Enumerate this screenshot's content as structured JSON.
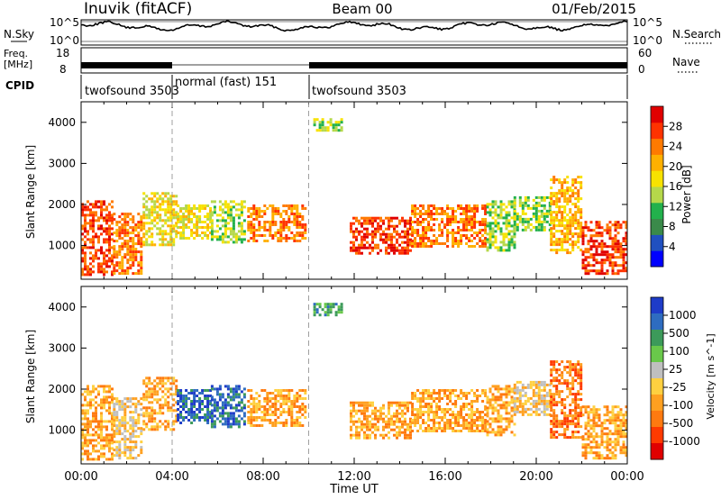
{
  "header": {
    "station": "Inuvik (fitACF)",
    "beam": "Beam 00",
    "date": "01/Feb/2015"
  },
  "side_labels": {
    "nsky": "N.Sky",
    "freq": "Freq.",
    "freq_unit": "[MHz]",
    "cpid": "CPID",
    "nsearch": "N.Search",
    "nave": "Nave"
  },
  "noise_axis": {
    "top": "10^5",
    "bottom": "10^0"
  },
  "freq_axis": {
    "top": "18",
    "bottom": "8"
  },
  "nave_axis": {
    "top": "60",
    "bottom": "0"
  },
  "cpid_segments": [
    {
      "label": "twofsound 3503",
      "start_h": 0,
      "end_h": 4
    },
    {
      "label": "normal (fast) 151",
      "start_h": 4,
      "end_h": 10
    },
    {
      "label": "twofsound 3503",
      "start_h": 10,
      "end_h": 24
    }
  ],
  "time_axis": {
    "xlabel": "Time UT",
    "ticks": [
      "00:00",
      "04:00",
      "08:00",
      "12:00",
      "16:00",
      "20:00",
      "00:00"
    ]
  },
  "colors": {
    "power": [
      "#0000ff",
      "#2050c0",
      "#3a8a4a",
      "#22b14c",
      "#b5d84a",
      "#f7e200",
      "#ffb000",
      "#ff7a00",
      "#ff3300",
      "#e00000"
    ],
    "velocity": [
      "#1e3cc8",
      "#2e6cc0",
      "#3c9a5a",
      "#69c84a",
      "#bfbfbf",
      "#ffd040",
      "#ffa020",
      "#ff7a10",
      "#ff3a00",
      "#e00000"
    ]
  },
  "chart_data": [
    {
      "type": "heatmap",
      "panel": "power",
      "ylabel": "Slant Range [km]",
      "xlabel": "",
      "ylim": [
        180,
        4500
      ],
      "xlim_hours": [
        0,
        24
      ],
      "yticks": [
        "1000",
        "2000",
        "3000",
        "4000"
      ],
      "colorbar": {
        "label": "Power [dB]",
        "ticks": [
          "4",
          "8",
          "12",
          "16",
          "20",
          "24",
          "28"
        ],
        "range": [
          0,
          30
        ]
      },
      "regions": [
        {
          "t0": 0.0,
          "t1": 1.4,
          "r0": 300,
          "r1": 2100,
          "level": 28
        },
        {
          "t0": 1.4,
          "t1": 2.7,
          "r0": 300,
          "r1": 1800,
          "level": 22
        },
        {
          "t0": 2.7,
          "t1": 4.2,
          "r0": 1000,
          "r1": 2300,
          "level": 18
        },
        {
          "t0": 4.2,
          "t1": 5.7,
          "r0": 1200,
          "r1": 2000,
          "level": 18
        },
        {
          "t0": 5.7,
          "t1": 7.2,
          "r0": 1100,
          "r1": 2100,
          "level": 14
        },
        {
          "t0": 7.3,
          "t1": 9.8,
          "r0": 1100,
          "r1": 2000,
          "level": 24
        },
        {
          "t0": 10.2,
          "t1": 11.4,
          "r0": 3800,
          "r1": 4100,
          "level": 12
        },
        {
          "t0": 11.8,
          "t1": 14.5,
          "r0": 800,
          "r1": 1700,
          "level": 26
        },
        {
          "t0": 14.5,
          "t1": 17.8,
          "r0": 1000,
          "r1": 2000,
          "level": 24
        },
        {
          "t0": 17.8,
          "t1": 19.0,
          "r0": 900,
          "r1": 2100,
          "level": 14
        },
        {
          "t0": 19.0,
          "t1": 20.6,
          "r0": 1400,
          "r1": 2200,
          "level": 12
        },
        {
          "t0": 20.6,
          "t1": 22.0,
          "r0": 800,
          "r1": 2700,
          "level": 20
        },
        {
          "t0": 22.0,
          "t1": 24.0,
          "r0": 300,
          "r1": 1600,
          "level": 28
        }
      ]
    },
    {
      "type": "heatmap",
      "panel": "velocity",
      "ylabel": "Slant Range [km]",
      "xlabel": "Time UT",
      "ylim": [
        180,
        4500
      ],
      "xlim_hours": [
        0,
        24
      ],
      "yticks": [
        "1000",
        "2000",
        "3000",
        "4000"
      ],
      "colorbar": {
        "label": "Velocity [m s^-1]",
        "ticks": [
          "1000",
          "500",
          "100",
          "25",
          "-25",
          "-100",
          "-500",
          "-1000"
        ],
        "range": [
          -1200,
          1200
        ]
      },
      "regions": [
        {
          "t0": 0.0,
          "t1": 1.4,
          "r0": 300,
          "r1": 2100,
          "level": -150
        },
        {
          "t0": 1.4,
          "t1": 2.7,
          "r0": 300,
          "r1": 1800,
          "level": -60
        },
        {
          "t0": 2.7,
          "t1": 4.2,
          "r0": 1000,
          "r1": 2300,
          "level": -200
        },
        {
          "t0": 4.2,
          "t1": 5.7,
          "r0": 1200,
          "r1": 2000,
          "level": 300
        },
        {
          "t0": 5.7,
          "t1": 7.2,
          "r0": 1100,
          "r1": 2100,
          "level": 700
        },
        {
          "t0": 7.3,
          "t1": 9.8,
          "r0": 1100,
          "r1": 2000,
          "level": -150
        },
        {
          "t0": 10.2,
          "t1": 11.4,
          "r0": 3800,
          "r1": 4100,
          "level": 80
        },
        {
          "t0": 11.8,
          "t1": 14.5,
          "r0": 800,
          "r1": 1700,
          "level": -200
        },
        {
          "t0": 14.5,
          "t1": 17.8,
          "r0": 1000,
          "r1": 2000,
          "level": -300
        },
        {
          "t0": 17.8,
          "t1": 19.0,
          "r0": 900,
          "r1": 2100,
          "level": -100
        },
        {
          "t0": 19.0,
          "t1": 20.6,
          "r0": 1400,
          "r1": 2200,
          "level": -60
        },
        {
          "t0": 20.6,
          "t1": 22.0,
          "r0": 800,
          "r1": 2700,
          "level": -600
        },
        {
          "t0": 22.0,
          "t1": 24.0,
          "r0": 300,
          "r1": 1600,
          "level": -200
        }
      ]
    }
  ]
}
